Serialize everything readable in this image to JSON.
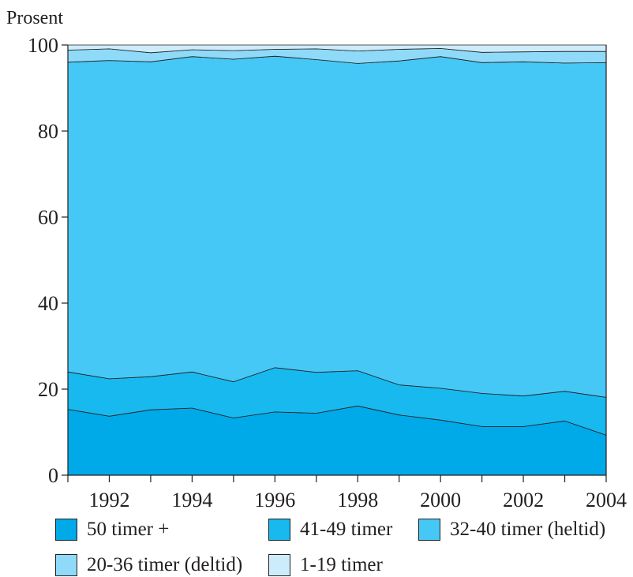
{
  "chart_data": {
    "type": "area",
    "stacked": true,
    "ylabel": "Prosent",
    "xlabel": "",
    "ylim": [
      0,
      100
    ],
    "xlim": [
      1991,
      2004
    ],
    "yticks": [
      0,
      20,
      40,
      60,
      80,
      100
    ],
    "xticks_labeled": [
      1992,
      1994,
      1996,
      1998,
      2000,
      2002,
      2004
    ],
    "x": [
      1991,
      1992,
      1993,
      1994,
      1995,
      1996,
      1997,
      1998,
      1999,
      2000,
      2001,
      2002,
      2003,
      2004
    ],
    "series": [
      {
        "name": "50 timer +",
        "color": "#00a9e8",
        "values": [
          15.3,
          13.7,
          15.2,
          15.6,
          13.3,
          14.7,
          14.4,
          16.1,
          14.0,
          12.8,
          11.3,
          11.3,
          12.6,
          9.3
        ]
      },
      {
        "name": "41-49 timer",
        "color": "#17b9ef",
        "values": [
          8.7,
          8.7,
          7.7,
          8.4,
          8.4,
          10.3,
          9.5,
          8.2,
          7.0,
          7.4,
          7.7,
          7.1,
          6.9,
          8.8
        ]
      },
      {
        "name": "32-40 timer (heltid)",
        "color": "#45c8f5",
        "values": [
          72.0,
          74.0,
          73.2,
          73.3,
          75.0,
          72.4,
          72.7,
          71.4,
          75.3,
          77.1,
          76.9,
          77.7,
          76.3,
          77.8
        ]
      },
      {
        "name": "20-36 timer (deltid)",
        "color": "#8fdaf8",
        "values": [
          2.8,
          2.7,
          2.1,
          1.6,
          2.0,
          1.6,
          2.5,
          2.9,
          2.7,
          1.9,
          2.4,
          2.3,
          2.7,
          2.6
        ]
      },
      {
        "name": "1-19 timer",
        "color": "#cdecfb",
        "values": [
          1.2,
          0.9,
          1.8,
          1.1,
          1.3,
          1.0,
          0.9,
          1.4,
          1.0,
          0.8,
          1.7,
          1.6,
          1.5,
          1.5
        ]
      }
    ],
    "grid": false,
    "legend_position": "bottom"
  }
}
